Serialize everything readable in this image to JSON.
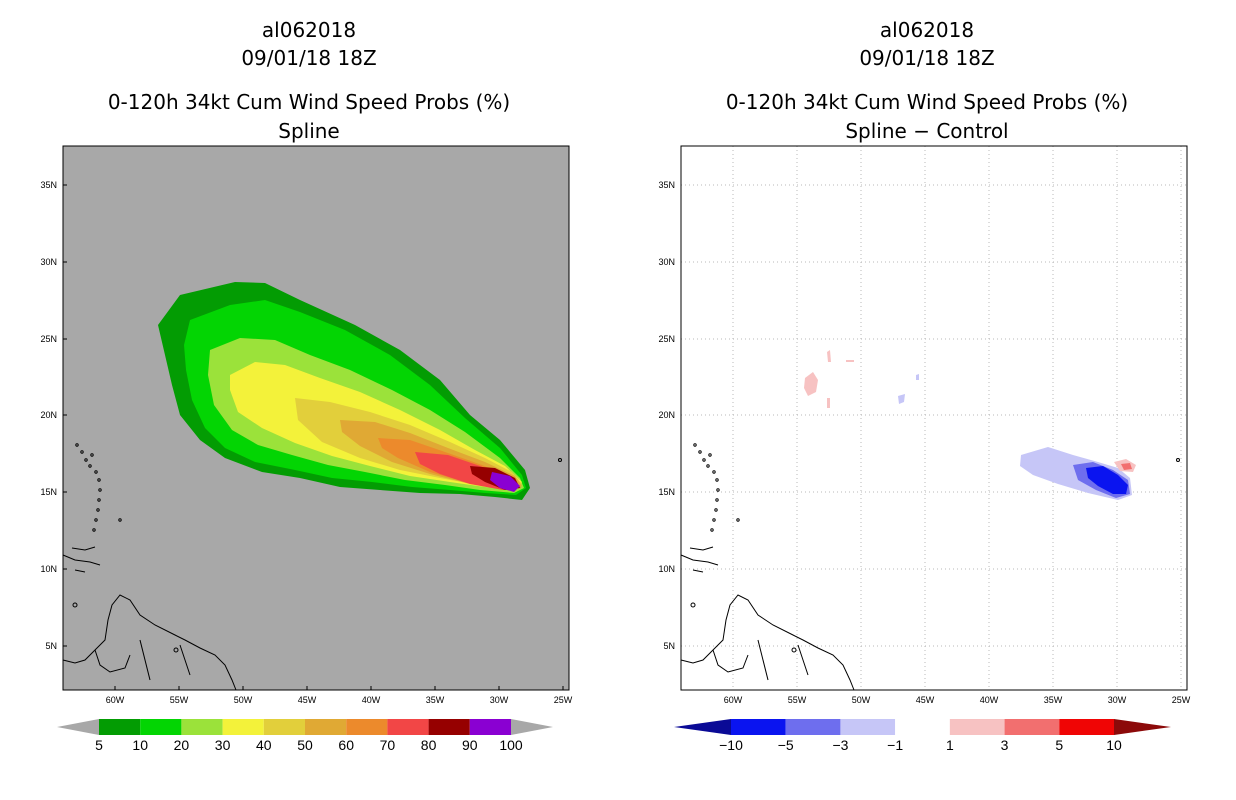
{
  "left_panel": {
    "title_storm": "al062018",
    "title_time": "09/01/18 18Z",
    "title_product": "0-120h 34kt Cum Wind Speed Probs (%)",
    "title_method": "Spline",
    "colorbar": {
      "labels": [
        "5",
        "10",
        "20",
        "30",
        "40",
        "50",
        "60",
        "70",
        "80",
        "90",
        "100"
      ],
      "colors": [
        "#a8a8a8",
        "#039c03",
        "#03d503",
        "#9be23a",
        "#f3f23a",
        "#e2cf3b",
        "#e0a934",
        "#ec8a2c",
        "#f24646",
        "#960000",
        "#8a00d2",
        "#a8a8a8"
      ]
    }
  },
  "right_panel": {
    "title_storm": "al062018",
    "title_time": "09/01/18 18Z",
    "title_product": "0-120h 34kt Cum Wind Speed Probs (%)",
    "title_method": "Spline − Control",
    "colorbar": {
      "labels": [
        "−10",
        "−5",
        "−3",
        "−1",
        "1",
        "3",
        "5",
        "10"
      ],
      "colors": [
        "#0a0a96",
        "#0a14f0",
        "#6e6eee",
        "#c6c6f7",
        "#ffffff",
        "#f7c2c2",
        "#f26f6f",
        "#f00505",
        "#8c0a0a"
      ]
    }
  },
  "axes": {
    "lat_labels": [
      "35N",
      "30N",
      "25N",
      "20N",
      "15N",
      "10N",
      "5N"
    ],
    "lon_labels": [
      "60W",
      "55W",
      "50W",
      "45W",
      "40W",
      "35W",
      "30W",
      "25W"
    ]
  }
}
